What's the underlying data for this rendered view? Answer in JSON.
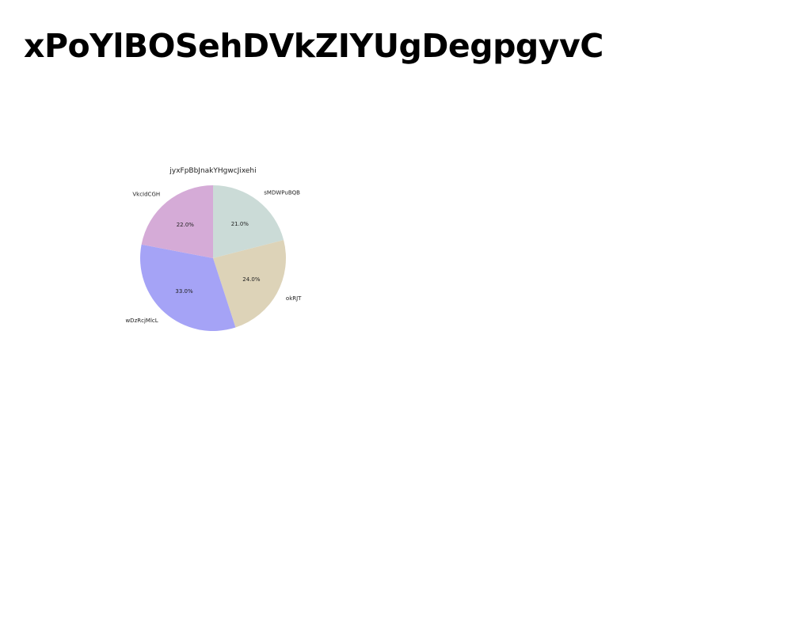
{
  "page": {
    "heading": "xPoYlBOSehDVkZIYUgDegpgyvC"
  },
  "chart_data": {
    "type": "pie",
    "title": "jyxFpBbJnakYHgwcJixehi",
    "categories": [
      "sMDWPuBQB",
      "okRJT",
      "wDzRcjMlcL",
      "VkcIdCGH"
    ],
    "values": [
      21.0,
      24.0,
      33.0,
      22.0
    ],
    "percent_labels": [
      "21.0%",
      "24.0%",
      "33.0%",
      "22.0%"
    ],
    "colors": [
      "#cbdbd7",
      "#ddd3b8",
      "#a5a3f6",
      "#d5abd7"
    ],
    "start_angle": "top (90°)",
    "direction": "clockwise",
    "legend": "none"
  }
}
